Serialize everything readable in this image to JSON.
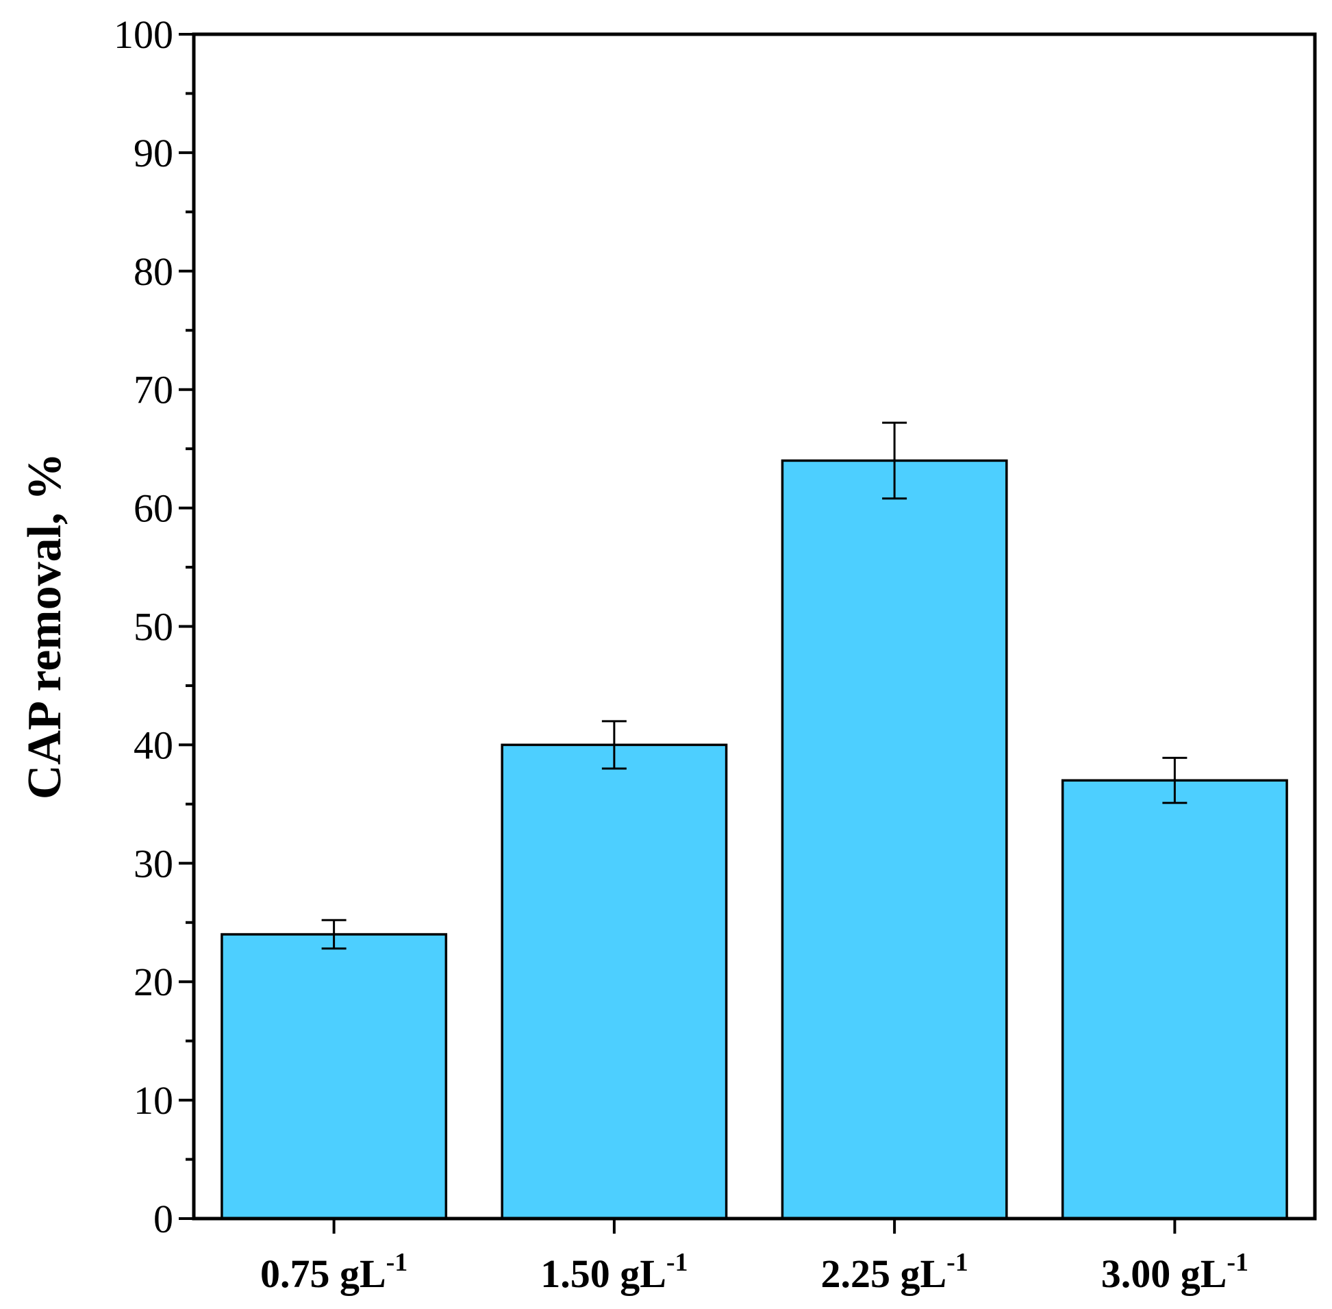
{
  "chart_data": {
    "type": "bar",
    "title": "",
    "xlabel": "",
    "ylabel": "CAP removal, %",
    "ylim": [
      0,
      100
    ],
    "yticks": [
      0,
      10,
      20,
      30,
      40,
      50,
      60,
      70,
      80,
      90,
      100
    ],
    "categories": [
      {
        "label": "0.75 gL",
        "sup": "-1"
      },
      {
        "label": "1.50 gL",
        "sup": "-1"
      },
      {
        "label": "2.25 gL",
        "sup": "-1"
      },
      {
        "label": "3.00 gL",
        "sup": "-1"
      }
    ],
    "values": [
      24,
      40,
      64,
      37
    ],
    "errors": [
      1.2,
      2.0,
      3.2,
      1.9
    ],
    "bar_color": "#4DCFFF",
    "edge_color": "#000000",
    "grid": false
  }
}
